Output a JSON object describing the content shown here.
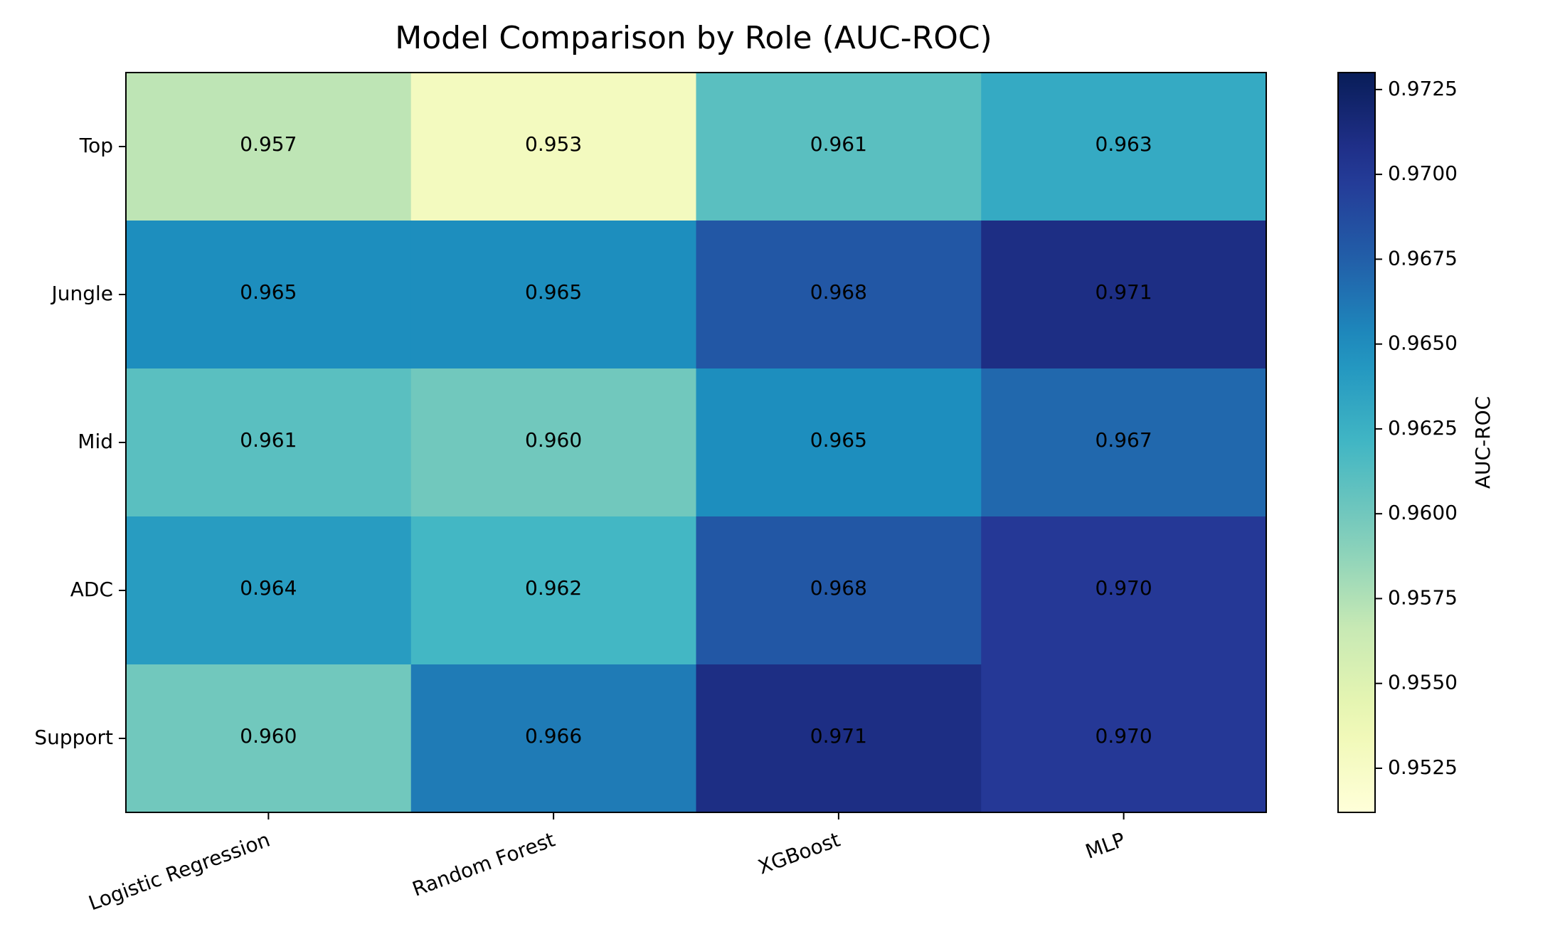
{
  "chart_data": {
    "type": "heatmap",
    "title": "Model Comparison by Role (AUC-ROC)",
    "xlabel": "",
    "ylabel": "",
    "columns": [
      "Logistic Regression",
      "Random Forest",
      "XGBoost",
      "MLP"
    ],
    "rows": [
      "Top",
      "Jungle",
      "Mid",
      "ADC",
      "Support"
    ],
    "values": [
      [
        0.957,
        0.953,
        0.961,
        0.963
      ],
      [
        0.965,
        0.965,
        0.968,
        0.971
      ],
      [
        0.961,
        0.96,
        0.965,
        0.967
      ],
      [
        0.964,
        0.962,
        0.968,
        0.97
      ],
      [
        0.96,
        0.966,
        0.971,
        0.97
      ]
    ],
    "cell_labels": [
      [
        "0.957",
        "0.953",
        "0.961",
        "0.963"
      ],
      [
        "0.965",
        "0.965",
        "0.968",
        "0.971"
      ],
      [
        "0.961",
        "0.960",
        "0.965",
        "0.967"
      ],
      [
        "0.964",
        "0.962",
        "0.968",
        "0.970"
      ],
      [
        "0.960",
        "0.966",
        "0.971",
        "0.970"
      ]
    ],
    "colormap": "YlGnBu",
    "colorbar": {
      "label": "AUC-ROC",
      "vmin": 0.9512,
      "vmax": 0.973,
      "ticks": [
        0.9525,
        0.955,
        0.9575,
        0.96,
        0.9625,
        0.965,
        0.9675,
        0.97,
        0.9725
      ],
      "tick_labels": [
        "0.9525",
        "0.9550",
        "0.9575",
        "0.9600",
        "0.9625",
        "0.9650",
        "0.9675",
        "0.9700",
        "0.9725"
      ]
    },
    "grid": false
  }
}
